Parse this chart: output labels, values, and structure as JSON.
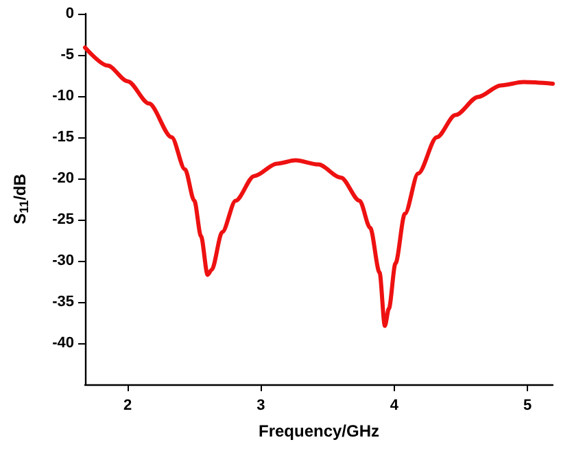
{
  "chart_data": {
    "type": "line",
    "xlabel": "Frequency/GHz",
    "ylabel": "S$_{11}$/dB",
    "xlim": [
      1.68,
      5.19
    ],
    "xticks": [
      2,
      3,
      4,
      5
    ],
    "ylim": [
      -45,
      0
    ],
    "yticks": [
      0,
      -5,
      -10,
      -15,
      -20,
      -25,
      -30,
      -35,
      -40
    ],
    "grid": false,
    "marker": "none",
    "line_style": "solid",
    "series": [
      {
        "color": "#ee1111",
        "x": [
          1.68,
          1.85,
          2.0,
          2.16,
          2.33,
          2.43,
          2.5,
          2.55,
          2.6,
          2.63,
          2.71,
          2.81,
          2.95,
          3.12,
          3.26,
          3.43,
          3.6,
          3.74,
          3.82,
          3.89,
          3.93,
          3.96,
          4.01,
          4.08,
          4.18,
          4.32,
          4.46,
          4.63,
          4.8,
          4.97,
          5.19
        ],
        "values": [
          -4.1,
          -6.3,
          -8.2,
          -10.9,
          -15.0,
          -18.9,
          -22.7,
          -27.0,
          -31.7,
          -31.1,
          -26.5,
          -22.7,
          -19.7,
          -18.2,
          -17.8,
          -18.3,
          -19.9,
          -22.7,
          -26.0,
          -31.4,
          -37.9,
          -35.8,
          -30.3,
          -24.3,
          -19.4,
          -15.0,
          -12.3,
          -10.1,
          -8.7,
          -8.3,
          -8.5
        ]
      }
    ]
  }
}
